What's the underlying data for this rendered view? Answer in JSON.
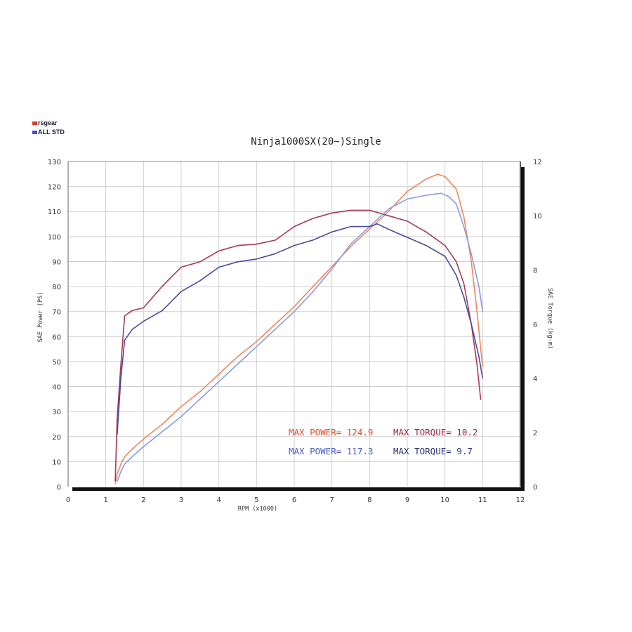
{
  "chart_data": {
    "type": "line",
    "title": "Ninja1000SX(20~)Single",
    "xlabel": "RPM (x1000)",
    "ylabel_left": "SAE Power (PS)",
    "ylabel_right": "SAE Torque (kg-m)",
    "xlim": [
      0,
      12
    ],
    "ylim_left": [
      0,
      130
    ],
    "ylim_right": [
      0,
      12
    ],
    "x_ticks": [
      "0",
      "1",
      "2",
      "3",
      "4",
      "5",
      "6",
      "7",
      "8",
      "9",
      "10",
      "11",
      "12"
    ],
    "y_ticks_left": [
      "0",
      "10",
      "20",
      "30",
      "40",
      "50",
      "60",
      "70",
      "80",
      "90",
      "100",
      "110",
      "120",
      "130"
    ],
    "y_ticks_right": [
      "0",
      "2",
      "4",
      "6",
      "8",
      "10",
      "12"
    ],
    "grid": true,
    "legend": [
      {
        "name": "rsgear",
        "color": "#d94030"
      },
      {
        "name": "ALL STD",
        "color": "#3a50c0"
      }
    ],
    "series": [
      {
        "name": "rsgear",
        "measure": "power",
        "axis": "left",
        "color": "#f0855a",
        "points": [
          [
            1.25,
            1
          ],
          [
            1.3,
            5
          ],
          [
            1.4,
            9
          ],
          [
            1.5,
            12
          ],
          [
            1.7,
            15
          ],
          [
            2,
            19
          ],
          [
            2.5,
            25
          ],
          [
            3,
            32
          ],
          [
            3.5,
            38
          ],
          [
            4,
            45
          ],
          [
            4.5,
            52
          ],
          [
            5,
            58
          ],
          [
            5.5,
            65
          ],
          [
            6,
            72
          ],
          [
            6.5,
            80
          ],
          [
            7,
            88
          ],
          [
            7.5,
            96
          ],
          [
            8,
            103
          ],
          [
            8.5,
            110
          ],
          [
            9,
            118
          ],
          [
            9.5,
            123
          ],
          [
            9.8,
            124.9
          ],
          [
            10,
            124
          ],
          [
            10.3,
            119
          ],
          [
            10.5,
            108
          ],
          [
            10.7,
            90
          ],
          [
            10.85,
            70
          ],
          [
            10.95,
            55
          ],
          [
            11,
            48
          ]
        ]
      },
      {
        "name": "rsgear",
        "measure": "torque",
        "axis": "right",
        "color": "#a83a52",
        "points": [
          [
            1.25,
            0.2
          ],
          [
            1.3,
            2.5
          ],
          [
            1.4,
            4.5
          ],
          [
            1.5,
            6.3
          ],
          [
            1.7,
            6.5
          ],
          [
            2,
            6.6
          ],
          [
            2.5,
            7.4
          ],
          [
            3,
            8.1
          ],
          [
            3.5,
            8.3
          ],
          [
            4,
            8.7
          ],
          [
            4.5,
            8.9
          ],
          [
            5,
            8.95
          ],
          [
            5.5,
            9.1
          ],
          [
            6,
            9.6
          ],
          [
            6.5,
            9.9
          ],
          [
            7,
            10.1
          ],
          [
            7.5,
            10.2
          ],
          [
            8,
            10.2
          ],
          [
            8.5,
            10.0
          ],
          [
            9,
            9.8
          ],
          [
            9.5,
            9.4
          ],
          [
            10,
            8.9
          ],
          [
            10.3,
            8.3
          ],
          [
            10.5,
            7.5
          ],
          [
            10.7,
            6.0
          ],
          [
            10.85,
            4.5
          ],
          [
            10.95,
            3.2
          ]
        ]
      },
      {
        "name": "ALL STD",
        "measure": "power",
        "axis": "left",
        "color": "#8a9ae0",
        "points": [
          [
            1.3,
            2
          ],
          [
            1.4,
            6
          ],
          [
            1.5,
            9
          ],
          [
            1.7,
            12
          ],
          [
            2,
            16
          ],
          [
            2.5,
            22
          ],
          [
            3,
            28
          ],
          [
            3.5,
            35
          ],
          [
            4,
            42
          ],
          [
            4.5,
            49
          ],
          [
            5,
            56
          ],
          [
            5.5,
            63
          ],
          [
            6,
            70
          ],
          [
            6.5,
            78
          ],
          [
            7,
            87
          ],
          [
            7.5,
            97
          ],
          [
            8,
            104
          ],
          [
            8.5,
            111
          ],
          [
            9,
            115
          ],
          [
            9.5,
            116.5
          ],
          [
            9.9,
            117.3
          ],
          [
            10.1,
            116
          ],
          [
            10.3,
            113
          ],
          [
            10.5,
            104
          ],
          [
            10.7,
            93
          ],
          [
            10.9,
            80
          ],
          [
            11,
            70
          ]
        ]
      },
      {
        "name": "ALL STD",
        "measure": "torque",
        "axis": "right",
        "color": "#4a4aa0",
        "points": [
          [
            1.3,
            1.9
          ],
          [
            1.4,
            4.0
          ],
          [
            1.5,
            5.4
          ],
          [
            1.7,
            5.8
          ],
          [
            2,
            6.1
          ],
          [
            2.5,
            6.5
          ],
          [
            3,
            7.2
          ],
          [
            3.5,
            7.6
          ],
          [
            4,
            8.1
          ],
          [
            4.5,
            8.3
          ],
          [
            5,
            8.4
          ],
          [
            5.5,
            8.6
          ],
          [
            6,
            8.9
          ],
          [
            6.5,
            9.1
          ],
          [
            7,
            9.4
          ],
          [
            7.5,
            9.6
          ],
          [
            8,
            9.6
          ],
          [
            8.2,
            9.7
          ],
          [
            8.5,
            9.5
          ],
          [
            9,
            9.2
          ],
          [
            9.5,
            8.9
          ],
          [
            10,
            8.5
          ],
          [
            10.3,
            7.8
          ],
          [
            10.5,
            7.0
          ],
          [
            10.7,
            6.0
          ],
          [
            10.9,
            4.8
          ],
          [
            11,
            4.0
          ]
        ]
      }
    ],
    "annotations": {
      "rsgear_max_power": "MAX POWER= 124.9",
      "rsgear_max_torque": "MAX TORQUE= 10.2",
      "std_max_power": "MAX POWER= 117.3",
      "std_max_torque": "MAX TORQUE= 9.7"
    }
  }
}
